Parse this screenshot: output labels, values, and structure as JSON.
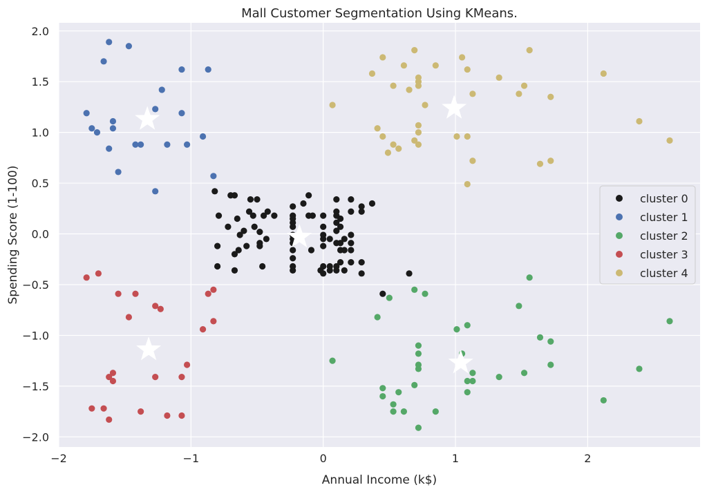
{
  "chart_data": {
    "type": "scatter",
    "title": "Mall Customer Segmentation Using KMeans.",
    "xlabel": "Annual Income (k$)",
    "ylabel": "Spending Score (1-100)",
    "xlim": [
      -2.0,
      2.85
    ],
    "ylim": [
      -2.1,
      2.08
    ],
    "xticks": [
      -2,
      -1,
      0,
      1,
      2
    ],
    "xtick_labels": [
      "−2",
      "−1",
      "0",
      "1",
      "2"
    ],
    "yticks": [
      2.0,
      1.5,
      1.0,
      0.5,
      0.0,
      -0.5,
      -1.0,
      -1.5,
      -2.0
    ],
    "ytick_labels": [
      "2.0",
      "1.5",
      "1.0",
      "0.5",
      "0.0",
      "−0.5",
      "−1.0",
      "−1.5",
      "−2.0"
    ],
    "grid": true,
    "legend_position": "center-right",
    "series": [
      {
        "name": "cluster 0",
        "color": "#1a1a1a",
        "points": [
          [
            -0.82,
            0.42
          ],
          [
            -0.7,
            0.38
          ],
          [
            -0.67,
            0.38
          ],
          [
            -0.55,
            0.34
          ],
          [
            -0.5,
            0.34
          ],
          [
            -0.42,
            0.22
          ],
          [
            -0.56,
            0.22
          ],
          [
            -0.53,
            0.18
          ],
          [
            -0.45,
            0.18
          ],
          [
            -0.79,
            0.18
          ],
          [
            -0.65,
            0.15
          ],
          [
            -0.52,
            0.07
          ],
          [
            -0.6,
            0.03
          ],
          [
            -0.48,
            0.02
          ],
          [
            -0.72,
            0.07
          ],
          [
            -0.63,
            -0.01
          ],
          [
            -0.43,
            -0.05
          ],
          [
            -0.48,
            -0.09
          ],
          [
            -0.48,
            -0.12
          ],
          [
            -0.64,
            -0.16
          ],
          [
            -0.8,
            -0.12
          ],
          [
            -0.58,
            -0.12
          ],
          [
            -0.67,
            -0.2
          ],
          [
            -0.8,
            -0.32
          ],
          [
            -0.67,
            -0.36
          ],
          [
            -0.46,
            -0.32
          ],
          [
            -0.37,
            0.18
          ],
          [
            -0.23,
            0.27
          ],
          [
            -0.23,
            0.18
          ],
          [
            -0.23,
            0.15
          ],
          [
            -0.23,
            0.11
          ],
          [
            -0.23,
            0.07
          ],
          [
            -0.23,
            -0.01
          ],
          [
            -0.23,
            -0.05
          ],
          [
            -0.23,
            -0.09
          ],
          [
            -0.23,
            -0.16
          ],
          [
            -0.23,
            -0.24
          ],
          [
            -0.23,
            -0.32
          ],
          [
            -0.23,
            -0.36
          ],
          [
            -0.11,
            0.38
          ],
          [
            -0.15,
            0.3
          ],
          [
            -0.08,
            0.18
          ],
          [
            -0.11,
            0.18
          ],
          [
            -0.09,
            -0.16
          ],
          [
            0.0,
            0.18
          ],
          [
            0.0,
            0.07
          ],
          [
            0.0,
            -0.01
          ],
          [
            0.0,
            -0.05
          ],
          [
            0.0,
            -0.12
          ],
          [
            0.0,
            -0.32
          ],
          [
            0.0,
            -0.39
          ],
          [
            -0.02,
            -0.36
          ],
          [
            0.05,
            -0.05
          ],
          [
            0.05,
            -0.32
          ],
          [
            0.05,
            -0.36
          ],
          [
            0.1,
            0.34
          ],
          [
            0.1,
            0.22
          ],
          [
            0.1,
            0.18
          ],
          [
            0.1,
            0.11
          ],
          [
            0.1,
            0.03
          ],
          [
            0.1,
            -0.09
          ],
          [
            0.1,
            -0.32
          ],
          [
            0.1,
            -0.36
          ],
          [
            0.13,
            0.15
          ],
          [
            0.13,
            0.07
          ],
          [
            0.13,
            -0.09
          ],
          [
            0.13,
            -0.16
          ],
          [
            0.13,
            -0.28
          ],
          [
            0.16,
            -0.05
          ],
          [
            0.16,
            -0.16
          ],
          [
            0.16,
            -0.36
          ],
          [
            0.21,
            0.34
          ],
          [
            0.21,
            0.22
          ],
          [
            0.21,
            -0.01
          ],
          [
            0.21,
            -0.09
          ],
          [
            0.21,
            -0.16
          ],
          [
            0.21,
            -0.28
          ],
          [
            0.29,
            0.27
          ],
          [
            0.29,
            0.22
          ],
          [
            0.29,
            -0.28
          ],
          [
            0.29,
            -0.39
          ],
          [
            0.37,
            0.3
          ],
          [
            0.65,
            -0.39
          ],
          [
            0.45,
            -0.59
          ]
        ]
      },
      {
        "name": "cluster 1",
        "color": "#4c72b0",
        "points": [
          [
            -1.62,
            1.89
          ],
          [
            -1.47,
            1.85
          ],
          [
            -1.66,
            1.7
          ],
          [
            -1.07,
            1.62
          ],
          [
            -0.87,
            1.62
          ],
          [
            -1.22,
            1.42
          ],
          [
            -1.79,
            1.19
          ],
          [
            -1.59,
            1.11
          ],
          [
            -1.27,
            1.23
          ],
          [
            -1.07,
            1.19
          ],
          [
            -1.75,
            1.04
          ],
          [
            -1.59,
            1.04
          ],
          [
            -1.71,
            1.0
          ],
          [
            -0.91,
            0.96
          ],
          [
            -1.42,
            0.88
          ],
          [
            -1.38,
            0.88
          ],
          [
            -1.18,
            0.88
          ],
          [
            -1.03,
            0.88
          ],
          [
            -1.62,
            0.84
          ],
          [
            -1.55,
            0.61
          ],
          [
            -0.83,
            0.57
          ],
          [
            -1.27,
            0.42
          ]
        ]
      },
      {
        "name": "cluster 2",
        "color": "#55a868",
        "points": [
          [
            0.69,
            -0.55
          ],
          [
            0.77,
            -0.59
          ],
          [
            0.5,
            -0.63
          ],
          [
            1.56,
            -0.43
          ],
          [
            1.48,
            -0.71
          ],
          [
            0.41,
            -0.82
          ],
          [
            2.62,
            -0.86
          ],
          [
            1.09,
            -0.9
          ],
          [
            1.01,
            -0.94
          ],
          [
            1.64,
            -1.02
          ],
          [
            1.72,
            -1.06
          ],
          [
            0.72,
            -1.1
          ],
          [
            0.72,
            -1.18
          ],
          [
            1.05,
            -1.18
          ],
          [
            0.07,
            -1.25
          ],
          [
            0.72,
            -1.29
          ],
          [
            1.72,
            -1.29
          ],
          [
            0.72,
            -1.33
          ],
          [
            1.33,
            -1.41
          ],
          [
            1.52,
            -1.37
          ],
          [
            2.39,
            -1.33
          ],
          [
            1.13,
            -1.37
          ],
          [
            1.09,
            -1.45
          ],
          [
            1.13,
            -1.45
          ],
          [
            0.69,
            -1.49
          ],
          [
            0.45,
            -1.52
          ],
          [
            0.57,
            -1.56
          ],
          [
            1.09,
            -1.56
          ],
          [
            0.45,
            -1.6
          ],
          [
            2.12,
            -1.64
          ],
          [
            0.53,
            -1.68
          ],
          [
            0.53,
            -1.75
          ],
          [
            0.61,
            -1.75
          ],
          [
            0.85,
            -1.75
          ],
          [
            0.72,
            -1.91
          ]
        ]
      },
      {
        "name": "cluster 3",
        "color": "#c44e52",
        "points": [
          [
            -1.79,
            -0.43
          ],
          [
            -1.7,
            -0.39
          ],
          [
            -1.55,
            -0.59
          ],
          [
            -1.42,
            -0.59
          ],
          [
            -0.87,
            -0.59
          ],
          [
            -0.83,
            -0.55
          ],
          [
            -1.27,
            -0.71
          ],
          [
            -1.23,
            -0.74
          ],
          [
            -1.47,
            -0.82
          ],
          [
            -0.83,
            -0.86
          ],
          [
            -0.91,
            -0.94
          ],
          [
            -1.03,
            -1.29
          ],
          [
            -1.59,
            -1.37
          ],
          [
            -1.62,
            -1.41
          ],
          [
            -1.27,
            -1.41
          ],
          [
            -1.07,
            -1.41
          ],
          [
            -1.59,
            -1.45
          ],
          [
            -1.75,
            -1.72
          ],
          [
            -1.66,
            -1.72
          ],
          [
            -1.38,
            -1.75
          ],
          [
            -1.18,
            -1.79
          ],
          [
            -1.07,
            -1.79
          ],
          [
            -1.62,
            -1.83
          ]
        ]
      },
      {
        "name": "cluster 4",
        "color": "#ccb974",
        "points": [
          [
            0.69,
            1.81
          ],
          [
            1.56,
            1.81
          ],
          [
            0.45,
            1.74
          ],
          [
            1.05,
            1.74
          ],
          [
            0.61,
            1.66
          ],
          [
            0.85,
            1.66
          ],
          [
            1.09,
            1.62
          ],
          [
            0.37,
            1.58
          ],
          [
            2.12,
            1.58
          ],
          [
            0.72,
            1.54
          ],
          [
            1.33,
            1.54
          ],
          [
            0.72,
            1.5
          ],
          [
            0.53,
            1.46
          ],
          [
            0.72,
            1.46
          ],
          [
            1.52,
            1.46
          ],
          [
            0.65,
            1.42
          ],
          [
            1.13,
            1.38
          ],
          [
            1.48,
            1.38
          ],
          [
            1.72,
            1.35
          ],
          [
            0.07,
            1.27
          ],
          [
            0.77,
            1.27
          ],
          [
            2.39,
            1.11
          ],
          [
            0.72,
            1.07
          ],
          [
            0.41,
            1.04
          ],
          [
            0.72,
            1.0
          ],
          [
            0.45,
            0.96
          ],
          [
            1.01,
            0.96
          ],
          [
            1.09,
            0.96
          ],
          [
            0.69,
            0.92
          ],
          [
            2.62,
            0.92
          ],
          [
            0.53,
            0.88
          ],
          [
            0.72,
            0.88
          ],
          [
            0.57,
            0.84
          ],
          [
            0.49,
            0.8
          ],
          [
            1.13,
            0.72
          ],
          [
            1.72,
            0.72
          ],
          [
            1.64,
            0.69
          ],
          [
            1.09,
            0.49
          ]
        ]
      }
    ],
    "centroids": {
      "name": "centroids",
      "color": "#ffffff",
      "marker": "star",
      "points": [
        [
          -1.33,
          1.13
        ],
        [
          -1.32,
          -1.14
        ],
        [
          -0.18,
          -0.03
        ],
        [
          0.99,
          1.24
        ],
        [
          1.04,
          -1.27
        ]
      ]
    }
  }
}
